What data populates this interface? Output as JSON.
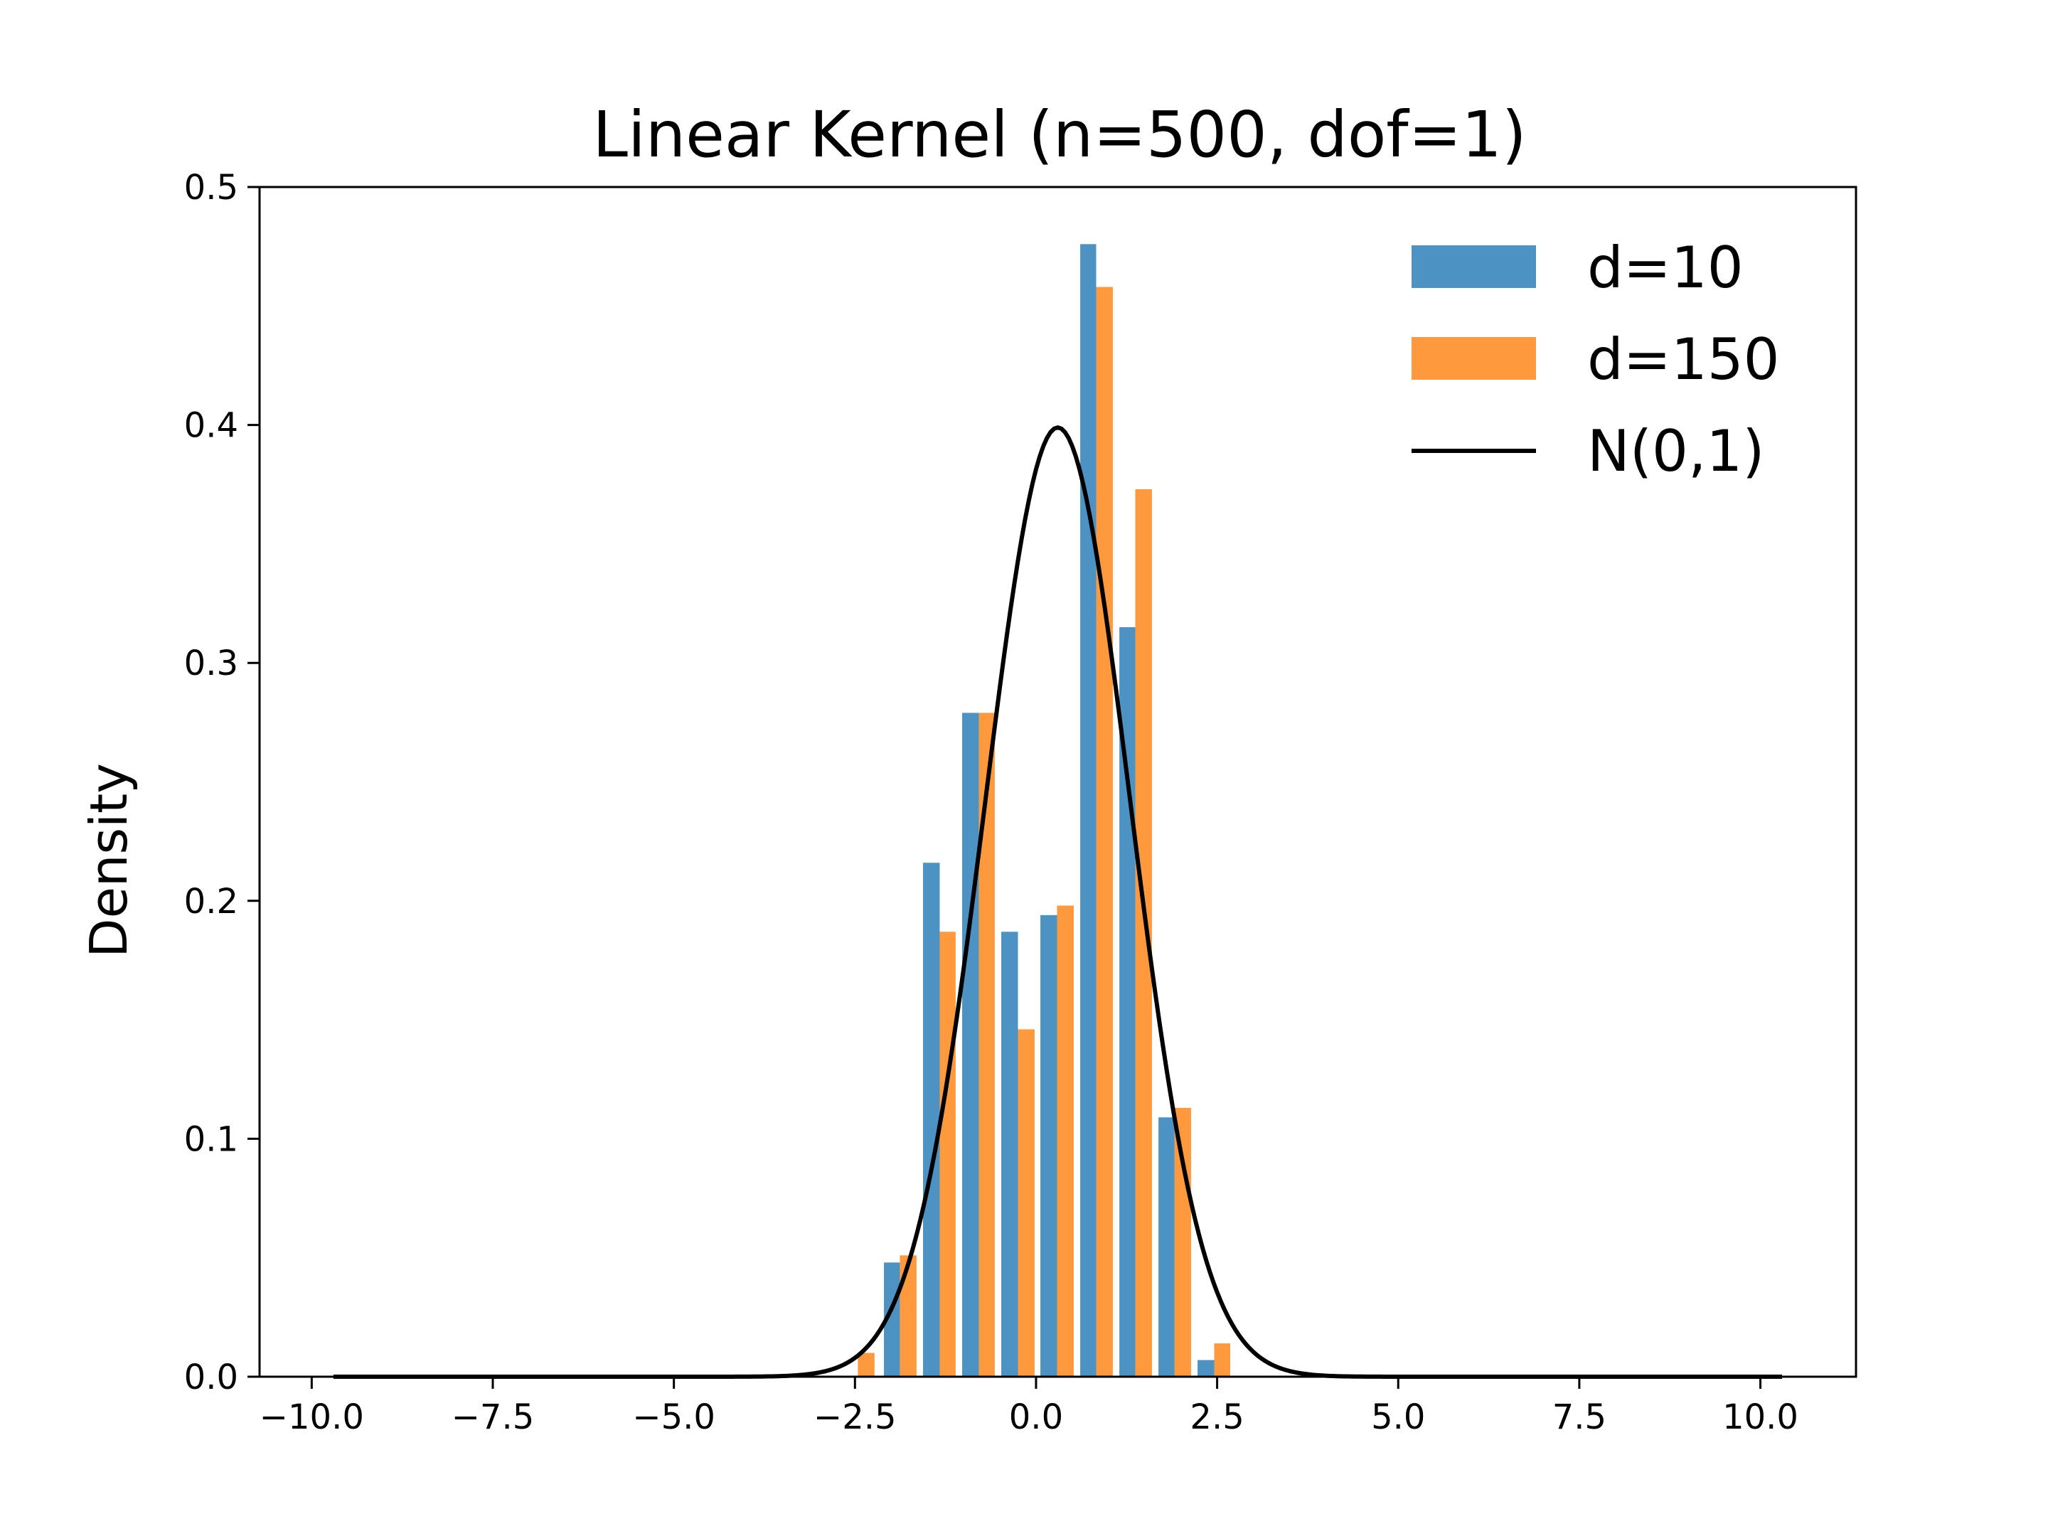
{
  "chart_data": {
    "type": "bar",
    "title": "Linear Kernel (n=500, dof=1)",
    "xlabel": "",
    "ylabel": "Density",
    "xlim": [
      -10.72,
      11.32
    ],
    "ylim": [
      0,
      0.5
    ],
    "grid": false,
    "legend_position": "top-right",
    "x_ticks": [
      -10.0,
      -7.5,
      -5.0,
      -2.5,
      0.0,
      2.5,
      5.0,
      7.5,
      10.0
    ],
    "x_tick_labels": [
      "−10.0",
      "−7.5",
      "−5.0",
      "−2.5",
      "0.0",
      "2.5",
      "5.0",
      "7.5",
      "10.0"
    ],
    "y_ticks": [
      0.0,
      0.1,
      0.2,
      0.3,
      0.4,
      0.5
    ],
    "y_tick_labels": [
      "0.0",
      "0.1",
      "0.2",
      "0.3",
      "0.4",
      "0.5"
    ],
    "series": [
      {
        "name": "d=10",
        "color": "#1f77b4",
        "opacity": 0.8,
        "bins": [
          {
            "x0": -2.1,
            "x1": -1.88,
            "value": 0.048
          },
          {
            "x0": -1.56,
            "x1": -1.33,
            "value": 0.216
          },
          {
            "x0": -1.02,
            "x1": -0.79,
            "value": 0.279
          },
          {
            "x0": -0.48,
            "x1": -0.25,
            "value": 0.187
          },
          {
            "x0": 0.06,
            "x1": 0.29,
            "value": 0.194
          },
          {
            "x0": 0.61,
            "x1": 0.83,
            "value": 0.476
          },
          {
            "x0": 1.15,
            "x1": 1.37,
            "value": 0.315
          },
          {
            "x0": 1.69,
            "x1": 1.91,
            "value": 0.109
          },
          {
            "x0": 2.23,
            "x1": 2.46,
            "value": 0.007
          }
        ]
      },
      {
        "name": "d=150",
        "color": "#ff7f0e",
        "opacity": 0.8,
        "bins": [
          {
            "x0": -2.46,
            "x1": -2.23,
            "value": 0.01
          },
          {
            "x0": -1.88,
            "x1": -1.65,
            "value": 0.051
          },
          {
            "x0": -1.33,
            "x1": -1.11,
            "value": 0.187
          },
          {
            "x0": -0.79,
            "x1": -0.57,
            "value": 0.279
          },
          {
            "x0": -0.25,
            "x1": -0.02,
            "value": 0.146
          },
          {
            "x0": 0.29,
            "x1": 0.52,
            "value": 0.198
          },
          {
            "x0": 0.83,
            "x1": 1.06,
            "value": 0.458
          },
          {
            "x0": 1.37,
            "x1": 1.6,
            "value": 0.373
          },
          {
            "x0": 1.91,
            "x1": 2.14,
            "value": 0.113
          },
          {
            "x0": 2.46,
            "x1": 2.68,
            "value": 0.014
          }
        ]
      },
      {
        "name": "N(0,1)",
        "type": "line",
        "color": "#000000",
        "mean": 0.3,
        "sd": 1.0,
        "x_range": [
          -9.7,
          10.3
        ]
      }
    ]
  }
}
